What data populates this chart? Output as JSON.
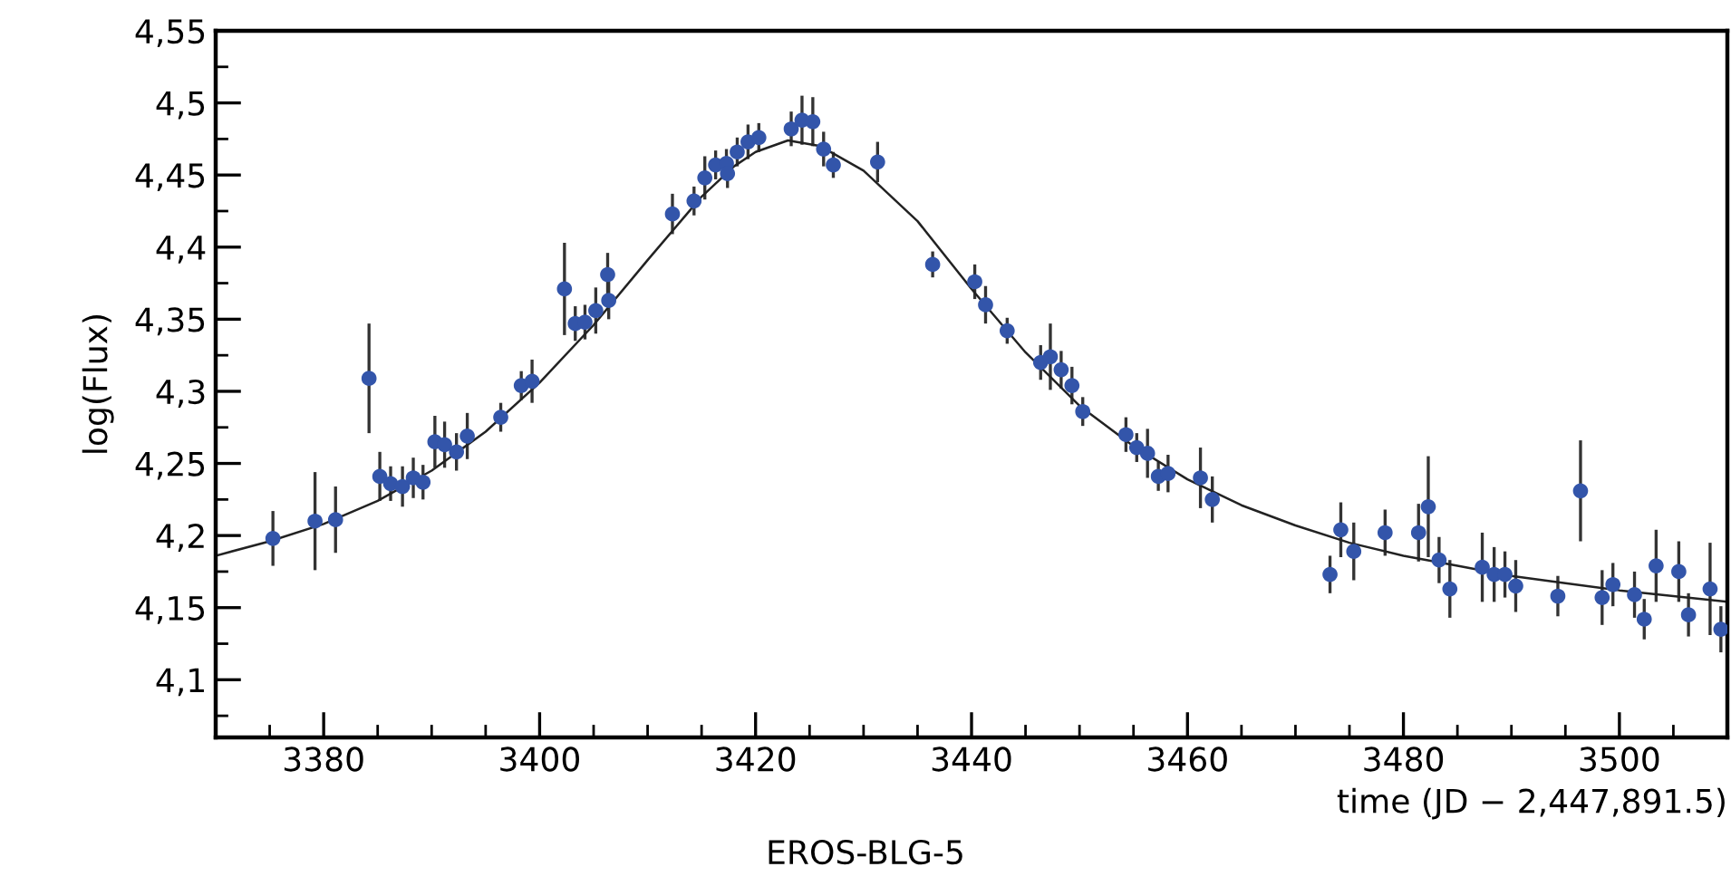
{
  "chart_data": {
    "type": "scatter",
    "xlabel": "time (JD − 2,447,891.5)",
    "ylabel": "log(Flux)",
    "annotations": [
      "EROS-BLG-5"
    ],
    "xlim": [
      3370,
      3510
    ],
    "ylim": [
      4.06,
      4.55
    ],
    "xticks": [
      3380,
      3400,
      3420,
      3440,
      3460,
      3480,
      3500
    ],
    "yticks": [
      {
        "value": 4.1,
        "label": "4,1"
      },
      {
        "value": 4.15,
        "label": "4,15"
      },
      {
        "value": 4.2,
        "label": "4,2"
      },
      {
        "value": 4.25,
        "label": "4,25"
      },
      {
        "value": 4.3,
        "label": "4,3"
      },
      {
        "value": 4.35,
        "label": "4,35"
      },
      {
        "value": 4.4,
        "label": "4,4"
      },
      {
        "value": 4.45,
        "label": "4,45"
      },
      {
        "value": 4.5,
        "label": "4,5"
      },
      {
        "value": 4.55,
        "label": "4,55"
      }
    ],
    "grid": false,
    "legend": false,
    "marker": "circle",
    "series": [
      {
        "color": "#3355aa",
        "x": [
          3375.3,
          3379.2,
          3381.1,
          3384.2,
          3385.2,
          3386.2,
          3387.3,
          3388.3,
          3389.2,
          3390.3,
          3391.2,
          3392.3,
          3393.3,
          3396.4,
          3398.3,
          3399.3,
          3402.3,
          3403.3,
          3404.2,
          3405.2,
          3406.3,
          3406.4,
          3412.3,
          3414.3,
          3415.3,
          3416.3,
          3417.3,
          3417.4,
          3418.3,
          3419.3,
          3420.3,
          3423.3,
          3424.3,
          3425.3,
          3426.3,
          3427.2,
          3431.3,
          3436.4,
          3440.3,
          3441.3,
          3443.3,
          3446.4,
          3447.3,
          3448.3,
          3449.3,
          3450.3,
          3454.3,
          3455.3,
          3456.3,
          3457.3,
          3458.2,
          3461.2,
          3462.3,
          3473.2,
          3474.2,
          3475.4,
          3478.3,
          3481.4,
          3482.3,
          3483.3,
          3484.3,
          3487.3,
          3488.4,
          3489.4,
          3490.4,
          3494.3,
          3496.4,
          3498.4,
          3499.4,
          3501.4,
          3502.3,
          3503.4,
          3505.5,
          3506.4,
          3508.4,
          3509.4
        ],
        "values": [
          4.198,
          4.21,
          4.211,
          4.309,
          4.241,
          4.236,
          4.234,
          4.24,
          4.237,
          4.265,
          4.263,
          4.258,
          4.269,
          4.282,
          4.304,
          4.307,
          4.371,
          4.347,
          4.348,
          4.356,
          4.381,
          4.363,
          4.423,
          4.432,
          4.448,
          4.457,
          4.458,
          4.451,
          4.466,
          4.473,
          4.476,
          4.482,
          4.488,
          4.487,
          4.468,
          4.457,
          4.459,
          4.388,
          4.376,
          4.36,
          4.342,
          4.32,
          4.324,
          4.315,
          4.304,
          4.286,
          4.27,
          4.261,
          4.257,
          4.241,
          4.243,
          4.24,
          4.225,
          4.173,
          4.204,
          4.189,
          4.202,
          4.202,
          4.22,
          4.183,
          4.163,
          4.178,
          4.173,
          4.173,
          4.165,
          4.158,
          4.231,
          4.157,
          4.166,
          4.159,
          4.142,
          4.179,
          4.175,
          4.145,
          4.163,
          4.135
        ],
        "errors": [
          0.019,
          0.034,
          0.023,
          0.038,
          0.017,
          0.012,
          0.014,
          0.014,
          0.012,
          0.018,
          0.016,
          0.013,
          0.016,
          0.01,
          0.01,
          0.015,
          0.032,
          0.012,
          0.012,
          0.016,
          0.015,
          0.013,
          0.014,
          0.01,
          0.015,
          0.01,
          0.01,
          0.01,
          0.01,
          0.012,
          0.01,
          0.012,
          0.017,
          0.017,
          0.012,
          0.009,
          0.014,
          0.009,
          0.012,
          0.013,
          0.009,
          0.012,
          0.023,
          0.013,
          0.013,
          0.01,
          0.012,
          0.01,
          0.017,
          0.01,
          0.013,
          0.021,
          0.016,
          0.013,
          0.019,
          0.02,
          0.016,
          0.02,
          0.035,
          0.016,
          0.02,
          0.024,
          0.019,
          0.016,
          0.018,
          0.014,
          0.035,
          0.019,
          0.015,
          0.016,
          0.014,
          0.025,
          0.021,
          0.015,
          0.032,
          0.016
        ]
      },
      {
        "type": "line",
        "color": "#222222",
        "marker": "none",
        "line_style": "solid",
        "x": [
          3370,
          3375,
          3380,
          3385,
          3390,
          3395,
          3400,
          3405,
          3410,
          3415,
          3418,
          3420,
          3423,
          3426,
          3430,
          3435,
          3440,
          3445,
          3450,
          3455,
          3460,
          3465,
          3470,
          3475,
          3480,
          3485,
          3490,
          3495,
          3500,
          3505,
          3510
        ],
        "values": [
          4.186,
          4.196,
          4.208,
          4.224,
          4.245,
          4.272,
          4.306,
          4.346,
          4.391,
          4.435,
          4.456,
          4.466,
          4.474,
          4.47,
          4.453,
          4.418,
          4.371,
          4.327,
          4.29,
          4.262,
          4.239,
          4.221,
          4.207,
          4.195,
          4.186,
          4.179,
          4.172,
          4.167,
          4.162,
          4.158,
          4.154
        ]
      }
    ]
  }
}
